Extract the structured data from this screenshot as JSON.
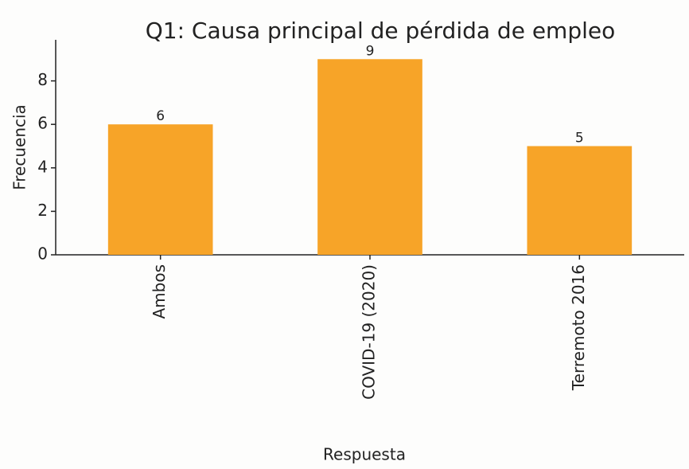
{
  "chart_data": {
    "type": "bar",
    "title": "Q1: Causa principal de pérdida de empleo",
    "xlabel": "Respuesta",
    "ylabel": "Frecuencia",
    "categories": [
      "Ambos",
      "COVID-19 (2020)",
      "Terremoto 2016"
    ],
    "values": [
      6,
      9,
      5
    ],
    "color": "#f7a428",
    "ylim": [
      0,
      9.45
    ],
    "yticks": [
      0,
      2,
      4,
      6,
      8
    ],
    "grid": false
  }
}
